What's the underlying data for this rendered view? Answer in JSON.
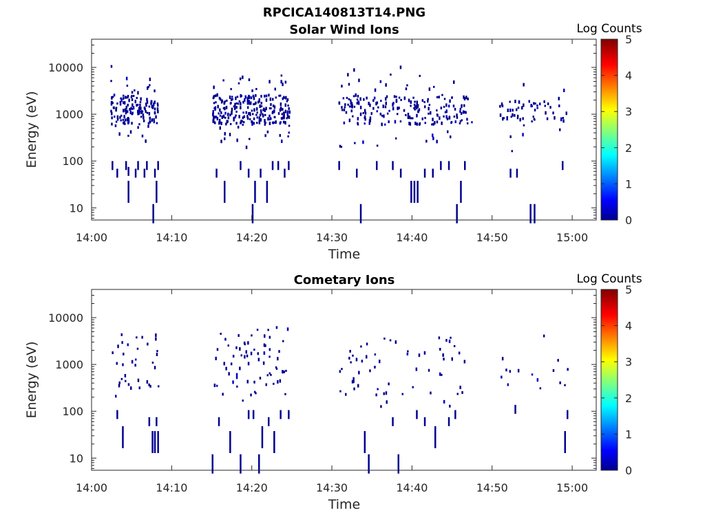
{
  "figure_title": "RPCICA140813T14.PNG",
  "chart_data": [
    {
      "type": "heatmap",
      "title": "Solar Wind Ions",
      "xlabel": "Time",
      "ylabel": "Energy (eV)",
      "x_ticks": [
        "14:00",
        "14:10",
        "14:20",
        "14:30",
        "14:40",
        "14:50",
        "15:00"
      ],
      "xlim": [
        "14:00",
        "15:03"
      ],
      "y_ticks": [
        "10",
        "100",
        "1000",
        "10000"
      ],
      "ylim": [
        5.5,
        40000
      ],
      "yscale": "log",
      "colorbar": {
        "label": "Log Counts",
        "ticks": [
          "0",
          "1",
          "2",
          "3",
          "4",
          "5"
        ],
        "range": [
          0,
          5
        ]
      },
      "groups": [
        {
          "t": [
            2.3,
            8.2
          ],
          "e": [
            600,
            2500
          ],
          "n": 150
        },
        {
          "t": [
            15,
            24.7
          ],
          "e": [
            600,
            2500
          ],
          "n": 250
        },
        {
          "t": [
            30.8,
            47.5
          ],
          "e": [
            600,
            2500
          ],
          "n": 220
        },
        {
          "t": [
            50.5,
            59.3
          ],
          "e": [
            700,
            2000
          ],
          "n": 60
        }
      ],
      "bars": [
        {
          "t": 2.5,
          "e": 80
        },
        {
          "t": 3.1,
          "e": 55
        },
        {
          "t": 4.2,
          "e": 80
        },
        {
          "t": 4.5,
          "e": 60
        },
        {
          "t": 5.4,
          "e": 55
        },
        {
          "t": 5.7,
          "e": 80
        },
        {
          "t": 6.5,
          "e": 55
        },
        {
          "t": 6.8,
          "e": 80
        },
        {
          "t": 7.8,
          "e": 55
        },
        {
          "t": 8.2,
          "e": 80
        },
        {
          "t": 4.5,
          "e": 22
        },
        {
          "t": 8.0,
          "e": 22
        },
        {
          "t": 7.6,
          "e": 7.5
        },
        {
          "t": 15.5,
          "e": 55
        },
        {
          "t": 16.5,
          "e": 22
        },
        {
          "t": 18.5,
          "e": 80
        },
        {
          "t": 19.5,
          "e": 55
        },
        {
          "t": 20.0,
          "e": 7.5
        },
        {
          "t": 20.3,
          "e": 22
        },
        {
          "t": 21.0,
          "e": 55
        },
        {
          "t": 21.8,
          "e": 22
        },
        {
          "t": 22.5,
          "e": 80
        },
        {
          "t": 23.2,
          "e": 80
        },
        {
          "t": 24.0,
          "e": 55
        },
        {
          "t": 24.5,
          "e": 80
        },
        {
          "t": 30.8,
          "e": 80
        },
        {
          "t": 33.0,
          "e": 55
        },
        {
          "t": 33.5,
          "e": 7.5
        },
        {
          "t": 35.5,
          "e": 80
        },
        {
          "t": 37.5,
          "e": 80
        },
        {
          "t": 38.5,
          "e": 55
        },
        {
          "t": 39.8,
          "e": 22
        },
        {
          "t": 40.2,
          "e": 22
        },
        {
          "t": 40.6,
          "e": 22
        },
        {
          "t": 41.5,
          "e": 55
        },
        {
          "t": 42.5,
          "e": 55
        },
        {
          "t": 43.5,
          "e": 80
        },
        {
          "t": 44.5,
          "e": 80
        },
        {
          "t": 45.5,
          "e": 7.5
        },
        {
          "t": 46.0,
          "e": 22
        },
        {
          "t": 46.5,
          "e": 80
        },
        {
          "t": 52.2,
          "e": 55
        },
        {
          "t": 53.0,
          "e": 55
        },
        {
          "t": 54.7,
          "e": 7.5
        },
        {
          "t": 55.2,
          "e": 7.5
        },
        {
          "t": 58.7,
          "e": 80
        }
      ]
    },
    {
      "type": "heatmap",
      "title": "Cometary Ions",
      "xlabel": "Time",
      "ylabel": "Energy (eV)",
      "x_ticks": [
        "14:00",
        "14:10",
        "14:20",
        "14:30",
        "14:40",
        "14:50",
        "15:00"
      ],
      "xlim": [
        "14:00",
        "15:03"
      ],
      "y_ticks": [
        "10",
        "100",
        "1000",
        "10000"
      ],
      "ylim": [
        5.5,
        40000
      ],
      "yscale": "log",
      "colorbar": {
        "label": "Log Counts",
        "ticks": [
          "0",
          "1",
          "2",
          "3",
          "4",
          "5"
        ],
        "range": [
          0,
          5
        ]
      },
      "groups": [
        {
          "t": [
            2.5,
            8.5
          ],
          "e": [
            300,
            5000
          ],
          "n": 35
        },
        {
          "t": [
            15,
            24.5
          ],
          "e": [
            200,
            5000
          ],
          "n": 70
        },
        {
          "t": [
            30.5,
            46.5
          ],
          "e": [
            150,
            4000
          ],
          "n": 60
        },
        {
          "t": [
            50.5,
            59.5
          ],
          "e": [
            300,
            1500
          ],
          "n": 15
        }
      ],
      "bars": [
        {
          "t": 3.1,
          "e": 85
        },
        {
          "t": 3.8,
          "e": 28
        },
        {
          "t": 7.1,
          "e": 60
        },
        {
          "t": 7.5,
          "e": 22
        },
        {
          "t": 7.8,
          "e": 22
        },
        {
          "t": 8.2,
          "e": 22
        },
        {
          "t": 8.0,
          "e": 60
        },
        {
          "t": 15.0,
          "e": 7.5
        },
        {
          "t": 15.8,
          "e": 60
        },
        {
          "t": 17.2,
          "e": 22
        },
        {
          "t": 18.5,
          "e": 7.5
        },
        {
          "t": 19.5,
          "e": 85
        },
        {
          "t": 20.1,
          "e": 85
        },
        {
          "t": 20.8,
          "e": 7.5
        },
        {
          "t": 21.2,
          "e": 28
        },
        {
          "t": 22.0,
          "e": 60
        },
        {
          "t": 22.7,
          "e": 22
        },
        {
          "t": 23.5,
          "e": 85
        },
        {
          "t": 24.5,
          "e": 85
        },
        {
          "t": 34.0,
          "e": 22
        },
        {
          "t": 34.5,
          "e": 7.5
        },
        {
          "t": 38.2,
          "e": 7.5
        },
        {
          "t": 37.5,
          "e": 60
        },
        {
          "t": 40.5,
          "e": 85
        },
        {
          "t": 41.5,
          "e": 60
        },
        {
          "t": 42.8,
          "e": 28
        },
        {
          "t": 44.5,
          "e": 60
        },
        {
          "t": 45.3,
          "e": 85
        },
        {
          "t": 52.8,
          "e": 110
        },
        {
          "t": 59.0,
          "e": 22
        },
        {
          "t": 59.3,
          "e": 85
        }
      ]
    }
  ]
}
